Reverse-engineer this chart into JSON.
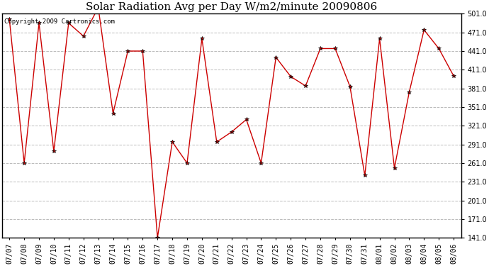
{
  "title": "Solar Radiation Avg per Day W/m2/minute 20090806",
  "copyright": "Copyright 2009 Cartronics.com",
  "x_labels": [
    "07/07",
    "07/08",
    "07/09",
    "07/10",
    "07/11",
    "07/12",
    "07/13",
    "07/14",
    "07/15",
    "07/16",
    "07/17",
    "07/18",
    "07/19",
    "07/20",
    "07/21",
    "07/22",
    "07/23",
    "07/24",
    "07/25",
    "07/26",
    "07/27",
    "07/28",
    "07/29",
    "07/30",
    "07/31",
    "08/01",
    "08/02",
    "08/03",
    "08/04",
    "08/05",
    "08/06"
  ],
  "values": [
    492,
    261,
    486,
    280,
    486,
    465,
    511,
    341,
    441,
    441,
    141,
    295,
    261,
    461,
    295,
    311,
    331,
    261,
    431,
    400,
    385,
    445,
    445,
    384,
    241,
    461,
    253,
    375,
    475,
    445,
    401
  ],
  "line_color": "#cc0000",
  "marker_color": "#000000",
  "background_color": "#ffffff",
  "grid_color": "#bbbbbb",
  "ylim_min": 141.0,
  "ylim_max": 501.0,
  "ytick_values": [
    141.0,
    171.0,
    201.0,
    231.0,
    261.0,
    291.0,
    321.0,
    351.0,
    381.0,
    411.0,
    441.0,
    471.0,
    501.0
  ],
  "title_fontsize": 11,
  "copyright_fontsize": 6.5,
  "tick_label_fontsize": 7
}
